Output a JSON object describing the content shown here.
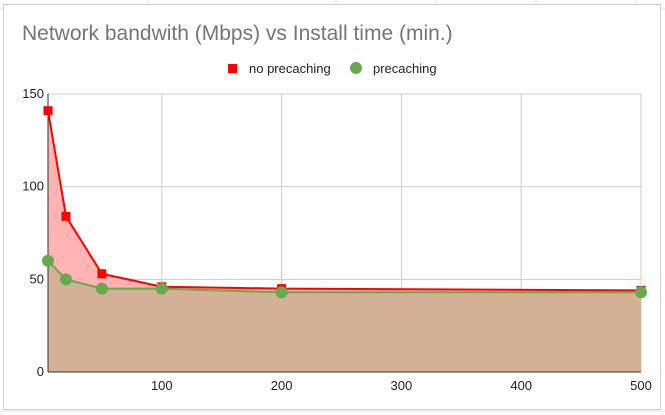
{
  "chart_data": {
    "type": "area",
    "title": "Network bandwith (Mbps) vs Install time (min.)",
    "xlabel": "",
    "ylabel": "",
    "xlim": [
      5,
      500
    ],
    "ylim": [
      0,
      150
    ],
    "x_ticks": [
      100,
      200,
      300,
      400,
      500
    ],
    "y_ticks": [
      0,
      50,
      100,
      150
    ],
    "grid": true,
    "legend_position": "top",
    "series": [
      {
        "name": "no precaching",
        "marker": "square",
        "color": "#ff0000",
        "fill": "#ffb3b3",
        "x": [
          5,
          20,
          50,
          100,
          200,
          500
        ],
        "values": [
          141,
          84,
          53,
          46,
          45,
          44
        ]
      },
      {
        "name": "precaching",
        "marker": "circle",
        "color": "#6aa84f",
        "fill": "#d4b096",
        "x": [
          5,
          20,
          50,
          100,
          200,
          500
        ],
        "values": [
          60,
          50,
          45,
          45,
          43,
          43
        ]
      }
    ]
  }
}
